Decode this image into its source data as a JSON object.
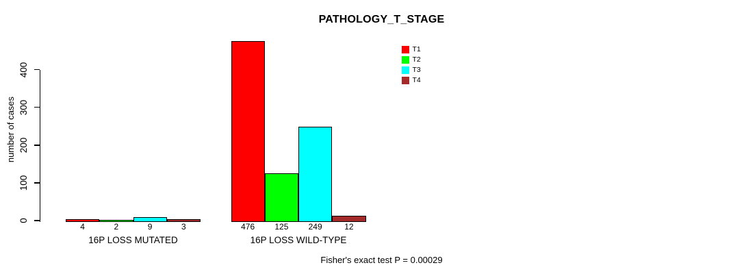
{
  "chart_data": {
    "type": "bar",
    "title": "PATHOLOGY_T_STAGE",
    "xlabel": "",
    "ylabel": "number of cases",
    "ylim": [
      0,
      400
    ],
    "yticks": [
      0,
      100,
      200,
      300,
      400
    ],
    "grid": false,
    "legend_position": "top-right",
    "categories": [
      "16P LOSS MUTATED",
      "16P LOSS WILD-TYPE"
    ],
    "series": [
      {
        "name": "T1",
        "color": "#ff0000",
        "values": [
          4,
          476
        ]
      },
      {
        "name": "T2",
        "color": "#00ff00",
        "values": [
          2,
          125
        ]
      },
      {
        "name": "T3",
        "color": "#00ffff",
        "values": [
          9,
          249
        ]
      },
      {
        "name": "T4",
        "color": "#a52a2a",
        "values": [
          3,
          12
        ]
      }
    ],
    "annotation": "Fisher's exact test P = 0.00029"
  }
}
